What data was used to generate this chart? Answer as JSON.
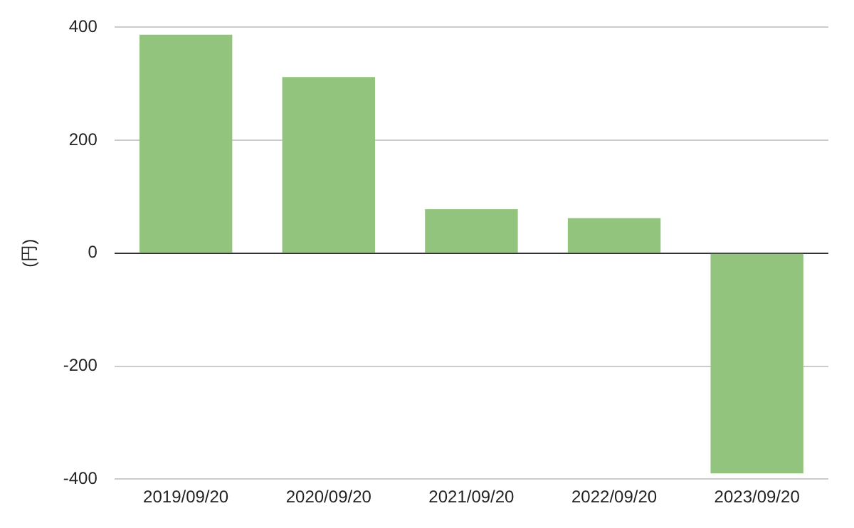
{
  "chart_data": {
    "type": "bar",
    "ylabel": "(円)",
    "categories": [
      "2019/09/20",
      "2020/09/20",
      "2021/09/20",
      "2022/09/20",
      "2023/09/20"
    ],
    "values": [
      387,
      312,
      78,
      62,
      -390
    ],
    "color": "#93c47d",
    "ylim": [
      -400,
      400
    ],
    "yticks": [
      -400,
      -200,
      0,
      200,
      400
    ],
    "grid": "y"
  }
}
